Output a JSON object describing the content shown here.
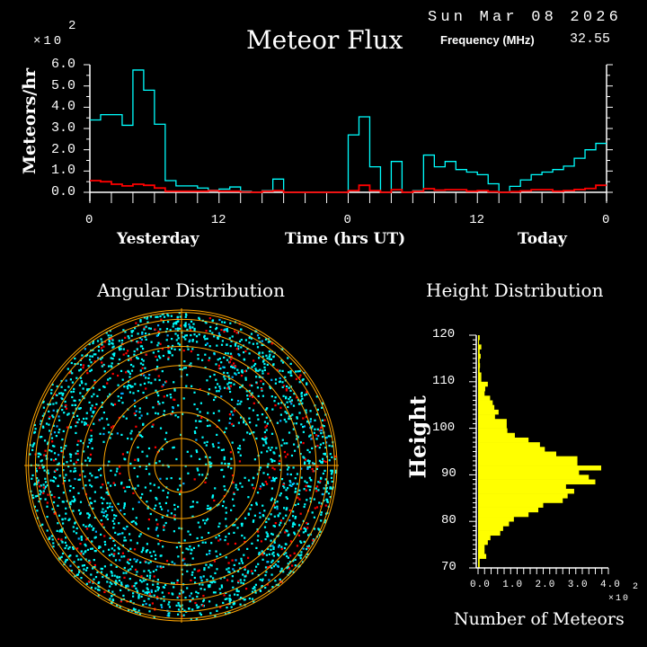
{
  "header": {
    "date": "Sun Mar 08 2026",
    "title": "Meteor Flux",
    "frequency_label": "Frequency (MHz)",
    "frequency_value": "32.55",
    "multiplier": "×10",
    "multiplier_exp": "2"
  },
  "colors": {
    "background": "#000000",
    "axis": "#ffffff",
    "total_series": "#00ffff",
    "secondary_series": "#ff0000",
    "grid_rings": "#ffa500",
    "histogram": "#ffff00",
    "scatter_primary": "#00ffff",
    "scatter_secondary": "#ff0000",
    "scatter_tertiary": "#00aaff"
  },
  "chart_data": [
    {
      "type": "line",
      "step": true,
      "title": "Meteor Flux",
      "ylabel": "Meteors/hr",
      "y_multiplier": "×10",
      "y_multiplier_exp": "2",
      "xlabel": "Time (hrs UT)",
      "x_group_labels": [
        "Yesterday",
        "Today"
      ],
      "xlim": [
        0,
        48
      ],
      "ylim": [
        0,
        6
      ],
      "x_tick_labels": [
        "0",
        "12",
        "0",
        "12",
        "0"
      ],
      "x_tick_values": [
        0,
        12,
        24,
        36,
        48
      ],
      "y_tick_labels": [
        "0.0",
        "1.0",
        "2.0",
        "3.0",
        "4.0",
        "5.0",
        "6.0"
      ],
      "series": [
        {
          "color": "#00ffff",
          "values": [
            3.4,
            3.65,
            3.65,
            3.15,
            5.75,
            4.8,
            3.2,
            0.55,
            0.3,
            0.3,
            0.2,
            0.1,
            0.15,
            0.25,
            0.05,
            0,
            0.08,
            0.62,
            0,
            0,
            0,
            0,
            0,
            0,
            2.7,
            3.55,
            1.2,
            0,
            1.45,
            0,
            0.08,
            1.75,
            1.2,
            1.45,
            1.07,
            0.95,
            0.83,
            0.4,
            0,
            0.28,
            0.58,
            0.83,
            0.95,
            1.07,
            1.23,
            1.6,
            2.0,
            2.3
          ]
        },
        {
          "color": "#ff0000",
          "values": [
            0.55,
            0.5,
            0.38,
            0.3,
            0.38,
            0.33,
            0.2,
            0.05,
            0.05,
            0.05,
            0.05,
            0.08,
            0.05,
            0.05,
            0.02,
            0,
            0.05,
            0.08,
            0,
            0,
            0,
            0,
            0,
            0,
            0.08,
            0.33,
            0.08,
            0,
            0.12,
            0,
            0.05,
            0.17,
            0.1,
            0.12,
            0.12,
            0.05,
            0.08,
            0.03,
            0,
            0.03,
            0.07,
            0.12,
            0.12,
            0.05,
            0.08,
            0.13,
            0.18,
            0.33
          ]
        }
      ]
    },
    {
      "type": "scatter",
      "projection": "polar",
      "title": "Angular Distribution",
      "ring_zenith_angles_deg": [
        10,
        20,
        30,
        40,
        50,
        60,
        70,
        80,
        90
      ]
    },
    {
      "type": "bar",
      "orientation": "horizontal",
      "title": "Height Distribution",
      "ylabel": "Height",
      "xlabel": "Number of Meteors",
      "x_multiplier": "×10",
      "x_multiplier_exp": "2",
      "ylim": [
        70,
        120
      ],
      "xlim": [
        0,
        4
      ],
      "y_tick_labels": [
        "70",
        "80",
        "90",
        "100",
        "110",
        "120"
      ],
      "x_tick_labels": [
        "0.0",
        "1.0",
        "2.0",
        "3.0",
        "4.0"
      ],
      "bin_starts": [
        70,
        71,
        72,
        73,
        74,
        75,
        76,
        77,
        78,
        79,
        80,
        81,
        82,
        83,
        84,
        85,
        86,
        87,
        88,
        89,
        90,
        91,
        92,
        93,
        94,
        95,
        96,
        97,
        98,
        99,
        100,
        101,
        102,
        103,
        104,
        105,
        106,
        107,
        108,
        109,
        110,
        111,
        112,
        113,
        114,
        115,
        116,
        117,
        118,
        119
      ],
      "values": [
        0.05,
        0.05,
        0.25,
        0.2,
        0.2,
        0.3,
        0.38,
        0.68,
        0.77,
        0.95,
        1.1,
        1.55,
        1.85,
        2.0,
        2.6,
        2.75,
        2.95,
        2.7,
        3.6,
        3.4,
        3.1,
        3.78,
        3.05,
        3.05,
        2.4,
        2.05,
        1.9,
        1.55,
        1.13,
        0.9,
        0.88,
        0.88,
        0.52,
        0.63,
        0.5,
        0.45,
        0.37,
        0.2,
        0.22,
        0.3,
        0.1,
        0.1,
        0.05,
        0.06,
        0.05,
        0.08,
        0.05,
        0.1,
        0.03,
        0.05
      ]
    }
  ]
}
